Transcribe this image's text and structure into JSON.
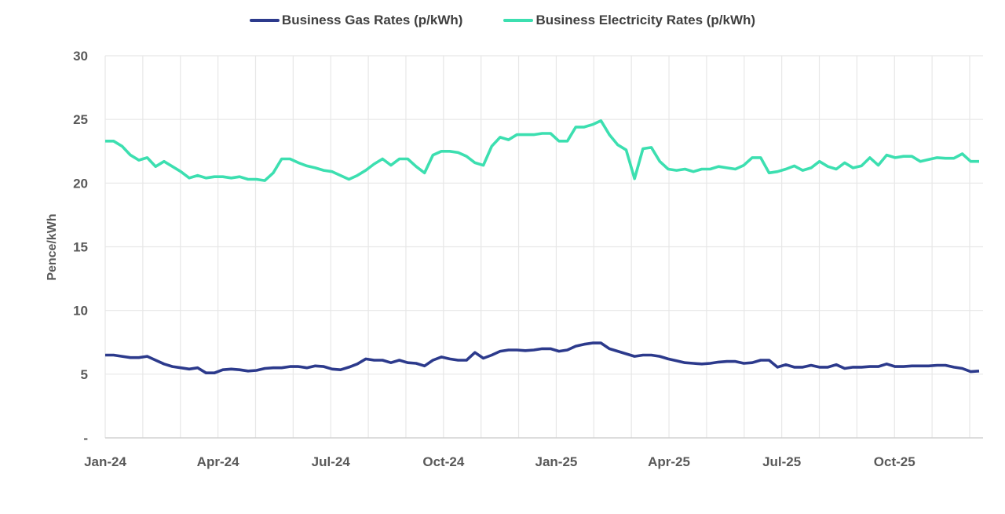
{
  "colors": {
    "background": "#ffffff",
    "gridline": "#e7e7e7",
    "axis_line": "#d2d2d2",
    "tick_text": "#595959",
    "legend_text": "#404040",
    "gas_line": "#2c3a8c",
    "electricity_line": "#3cdfb0"
  },
  "legend": {
    "items": [
      {
        "label": "Business Gas Rates (p/kWh)",
        "color": "#2c3a8c"
      },
      {
        "label": "Business Electricity Rates (p/kWh)",
        "color": "#3cdfb0"
      }
    ]
  },
  "chart_data": {
    "type": "line",
    "title": "",
    "xlabel": "",
    "ylabel": "Pence/kWh",
    "ylim": [
      0,
      30
    ],
    "grid": true,
    "legend_position": "top",
    "x_unit": "weeks from Jan-2024, weekly points",
    "x_months_total": 24,
    "y_ticks": [
      {
        "value": 30,
        "label": "30"
      },
      {
        "value": 25,
        "label": "25"
      },
      {
        "value": 20,
        "label": "20"
      },
      {
        "value": 15,
        "label": "15"
      },
      {
        "value": 10,
        "label": "10"
      },
      {
        "value": 5,
        "label": "5"
      },
      {
        "value": 0,
        "label": "-"
      }
    ],
    "x_ticks": [
      {
        "month": 0,
        "label": "Jan-24"
      },
      {
        "month": 3,
        "label": "Apr-24"
      },
      {
        "month": 6,
        "label": "Jul-24"
      },
      {
        "month": 9,
        "label": "Oct-24"
      },
      {
        "month": 12,
        "label": "Jan-25"
      },
      {
        "month": 15,
        "label": "Apr-25"
      },
      {
        "month": 18,
        "label": "Jul-25"
      },
      {
        "month": 21,
        "label": "Oct-25"
      }
    ],
    "series": [
      {
        "name": "Business Gas Rates (p/kWh)",
        "color": "#2c3a8c",
        "values": [
          6.5,
          6.5,
          6.4,
          6.3,
          6.3,
          6.4,
          6.1,
          5.8,
          5.6,
          5.5,
          5.4,
          5.5,
          5.1,
          5.1,
          5.35,
          5.4,
          5.35,
          5.25,
          5.3,
          5.45,
          5.5,
          5.5,
          5.6,
          5.6,
          5.5,
          5.65,
          5.6,
          5.4,
          5.35,
          5.55,
          5.8,
          6.2,
          6.1,
          6.1,
          5.9,
          6.1,
          5.9,
          5.85,
          5.65,
          6.1,
          6.35,
          6.2,
          6.1,
          6.1,
          6.7,
          6.25,
          6.5,
          6.8,
          6.9,
          6.9,
          6.85,
          6.9,
          7.0,
          7.0,
          6.8,
          6.9,
          7.2,
          7.35,
          7.45,
          7.45,
          7.0,
          6.8,
          6.6,
          6.4,
          6.5,
          6.5,
          6.4,
          6.2,
          6.05,
          5.9,
          5.85,
          5.8,
          5.85,
          5.95,
          6.0,
          6.0,
          5.85,
          5.9,
          6.1,
          6.1,
          5.55,
          5.75,
          5.55,
          5.55,
          5.7,
          5.55,
          5.55,
          5.75,
          5.45,
          5.55,
          5.55,
          5.6,
          5.6,
          5.8,
          5.6,
          5.6,
          5.65,
          5.65,
          5.65,
          5.7,
          5.7,
          5.55,
          5.45,
          5.2,
          5.25
        ]
      },
      {
        "name": "Business Electricity Rates (p/kWh)",
        "color": "#3cdfb0",
        "values": [
          23.3,
          23.3,
          22.9,
          22.2,
          21.8,
          22.0,
          21.3,
          21.7,
          21.3,
          20.9,
          20.4,
          20.6,
          20.4,
          20.5,
          20.5,
          20.4,
          20.5,
          20.3,
          20.3,
          20.2,
          20.8,
          21.9,
          21.9,
          21.6,
          21.35,
          21.2,
          21.0,
          20.9,
          20.6,
          20.3,
          20.6,
          21.0,
          21.5,
          21.9,
          21.4,
          21.9,
          21.9,
          21.3,
          20.8,
          22.2,
          22.5,
          22.5,
          22.4,
          22.1,
          21.6,
          21.4,
          22.9,
          23.6,
          23.4,
          23.8,
          23.8,
          23.8,
          23.9,
          23.9,
          23.3,
          23.3,
          24.4,
          24.4,
          24.6,
          24.9,
          23.8,
          23.0,
          22.6,
          20.35,
          22.7,
          22.8,
          21.7,
          21.1,
          21.0,
          21.1,
          20.9,
          21.1,
          21.1,
          21.3,
          21.2,
          21.1,
          21.4,
          22.0,
          22.0,
          20.8,
          20.9,
          21.1,
          21.35,
          21.0,
          21.2,
          21.7,
          21.3,
          21.1,
          21.6,
          21.2,
          21.35,
          22.0,
          21.4,
          22.2,
          22.0,
          22.1,
          22.1,
          21.7,
          21.85,
          22.0,
          21.95,
          21.95,
          22.3,
          21.7,
          21.7
        ]
      }
    ]
  }
}
